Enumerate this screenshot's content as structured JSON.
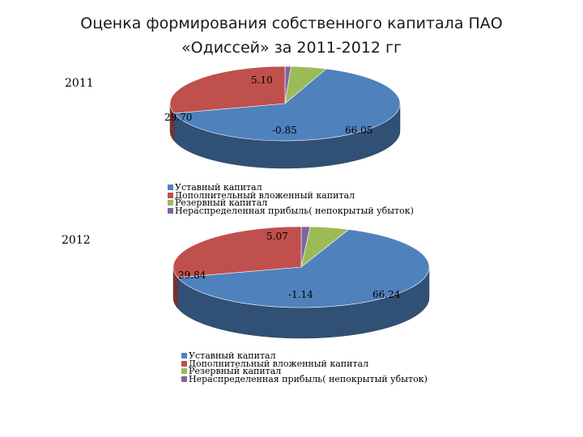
{
  "title_line1": "Оценка формирования собственного капитала ПАО",
  "title_line2": "«Одиссей» за 2011-2012 гг",
  "colors": {
    "charter": "#4f81bd",
    "additional": "#c0504d",
    "reserve": "#9bbb59",
    "retained": "#8064a2"
  },
  "chart_data": [
    {
      "type": "pie",
      "title": "2011",
      "categories": [
        "Уставный капитал",
        "Дополнительный вложенный капитал",
        "Резервный капитал",
        "Нераспределенная прибыль( непокрытый убыток)"
      ],
      "values": [
        66.05,
        29.7,
        5.1,
        -0.85
      ],
      "labels": [
        "66.05",
        "29.70",
        "5.10",
        "-0.85"
      ],
      "legend_position": "bottom"
    },
    {
      "type": "pie",
      "title": "2012",
      "categories": [
        "Уставный капитал",
        "Дополнительный вложенный капитал",
        "Резервный капитал",
        "Нераспределенная прибыль( непокрытый убыток)"
      ],
      "values": [
        66.24,
        29.84,
        5.07,
        -1.14
      ],
      "labels": [
        "66.24",
        "29.84",
        "5.07",
        "-1.14"
      ],
      "legend_position": "bottom"
    }
  ]
}
